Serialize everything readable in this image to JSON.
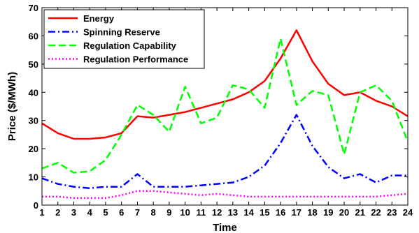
{
  "chart_data": {
    "type": "line",
    "xlabel": "Time",
    "ylabel": "Price ($/MWh)",
    "x": [
      1,
      2,
      3,
      4,
      5,
      6,
      7,
      8,
      9,
      10,
      11,
      12,
      13,
      14,
      15,
      16,
      17,
      18,
      19,
      20,
      21,
      22,
      23,
      24
    ],
    "xlim": [
      1,
      24
    ],
    "ylim": [
      0,
      70
    ],
    "yticks": [
      0,
      10,
      20,
      30,
      40,
      50,
      60,
      70
    ],
    "grid": false,
    "legend_position": "top-left",
    "series": [
      {
        "name": "Energy",
        "color": "#ff0000",
        "dash": "solid",
        "values": [
          29,
          25.5,
          23.5,
          23.5,
          24,
          25.5,
          31.5,
          31,
          32,
          33,
          34.5,
          36,
          37.5,
          40,
          44,
          52,
          62,
          51,
          43,
          39,
          40,
          37,
          35,
          31.5
        ]
      },
      {
        "name": "Spinning Reserve",
        "color": "#0000ff",
        "dash": "dashdot",
        "values": [
          9.5,
          7.5,
          6.5,
          6,
          6.5,
          6.5,
          11,
          6.5,
          6.5,
          6.5,
          7,
          7.5,
          8,
          10,
          14,
          22,
          32,
          21,
          13.5,
          9.5,
          11,
          8,
          10.5,
          10.5
        ]
      },
      {
        "name": "Regulation Capability",
        "color": "#00ff00",
        "dash": "dashed",
        "values": [
          13,
          15,
          11.5,
          12,
          16,
          25,
          35.5,
          32,
          26,
          42,
          29,
          31,
          42.5,
          41,
          34.5,
          59,
          35.5,
          40.5,
          39,
          18,
          40,
          42.5,
          37,
          22.5
        ]
      },
      {
        "name": "Regulation Performance",
        "color": "#ff00ff",
        "dash": "dotted",
        "values": [
          3,
          3,
          2.5,
          2.5,
          2.5,
          3.5,
          5,
          5,
          4.5,
          4,
          3.5,
          4,
          3.5,
          3,
          3,
          3,
          3,
          3,
          3,
          3,
          3,
          3,
          3.5,
          4
        ]
      }
    ]
  }
}
